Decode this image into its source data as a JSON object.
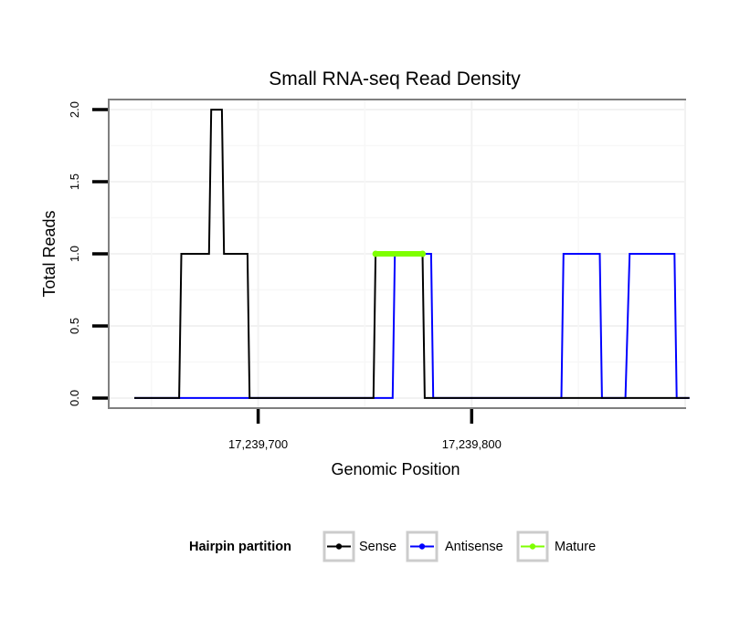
{
  "chart_data": {
    "type": "line",
    "title": "Small RNA-seq Read Density",
    "xlabel": "Genomic Position",
    "ylabel": "Total Reads",
    "xlim": [
      17239630,
      17239900
    ],
    "ylim": [
      -0.07,
      2.07
    ],
    "x_ticks": [
      {
        "value": 17239700,
        "label": "17,239,700"
      },
      {
        "value": 17239800,
        "label": "17,239,800"
      }
    ],
    "y_ticks": [
      {
        "value": 0.0,
        "label": "0.0"
      },
      {
        "value": 0.5,
        "label": "0.5"
      },
      {
        "value": 1.0,
        "label": "1.0"
      },
      {
        "value": 1.5,
        "label": "1.5"
      },
      {
        "value": 2.0,
        "label": "2.0"
      }
    ],
    "grid": true,
    "legend": {
      "title": "Hairpin partition",
      "position": "bottom"
    },
    "series": [
      {
        "name": "Antisense",
        "color": "#0000ff",
        "points": [
          [
            17239642,
            0
          ],
          [
            17239763,
            0
          ],
          [
            17239764,
            1
          ],
          [
            17239781,
            1
          ],
          [
            17239782,
            0
          ],
          [
            17239842,
            0
          ],
          [
            17239843,
            1
          ],
          [
            17239860,
            1
          ],
          [
            17239861,
            0
          ],
          [
            17239872,
            0
          ],
          [
            17239874,
            1
          ],
          [
            17239895,
            1
          ],
          [
            17239896,
            0
          ],
          [
            17239902,
            0
          ]
        ]
      },
      {
        "name": "Sense",
        "color": "#000000",
        "points": [
          [
            17239642,
            0
          ],
          [
            17239663,
            0
          ],
          [
            17239664,
            1
          ],
          [
            17239677,
            1
          ],
          [
            17239678,
            2
          ],
          [
            17239683,
            2
          ],
          [
            17239684,
            1
          ],
          [
            17239695,
            1
          ],
          [
            17239696,
            0
          ],
          [
            17239754,
            0
          ],
          [
            17239755,
            1
          ],
          [
            17239777,
            1
          ],
          [
            17239778,
            0
          ],
          [
            17239902,
            0
          ]
        ]
      },
      {
        "name": "Mature",
        "color": "#7fff00",
        "points": [
          [
            17239755,
            1
          ],
          [
            17239777,
            1
          ]
        ]
      }
    ],
    "legend_order": [
      "Sense",
      "Antisense",
      "Mature"
    ]
  }
}
